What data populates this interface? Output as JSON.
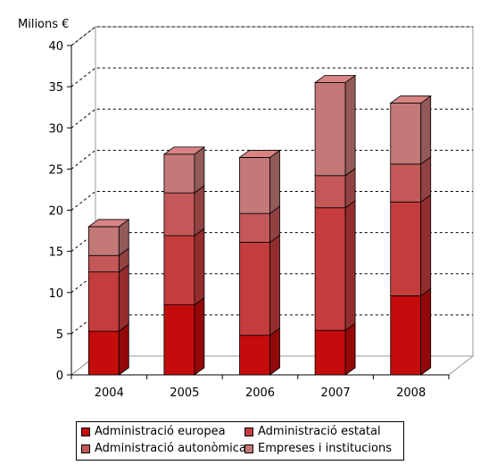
{
  "chart_data": {
    "type": "bar",
    "stacked": true,
    "three_d": true,
    "unit_label": "Milions €",
    "categories": [
      "2004",
      "2005",
      "2006",
      "2007",
      "2008"
    ],
    "ylim": [
      0,
      40
    ],
    "yticks": [
      0,
      5,
      10,
      15,
      20,
      25,
      30,
      35,
      40
    ],
    "grid": "dashed horizontal",
    "legend_position": "bottom",
    "series": [
      {
        "name": "Administració europea",
        "color": "#c40c0c",
        "values": [
          5.3,
          8.5,
          4.8,
          5.4,
          9.6
        ]
      },
      {
        "name": "Administració estatal",
        "color": "#c43c3c",
        "values": [
          7.2,
          8.4,
          11.3,
          14.9,
          11.4
        ]
      },
      {
        "name": "Administració autonòmica",
        "color": "#c45858",
        "values": [
          2.0,
          5.2,
          3.5,
          3.9,
          4.6
        ]
      },
      {
        "name": "Empreses i institucions",
        "color": "#c47878",
        "values": [
          3.5,
          4.7,
          6.8,
          11.3,
          7.4
        ]
      }
    ]
  }
}
